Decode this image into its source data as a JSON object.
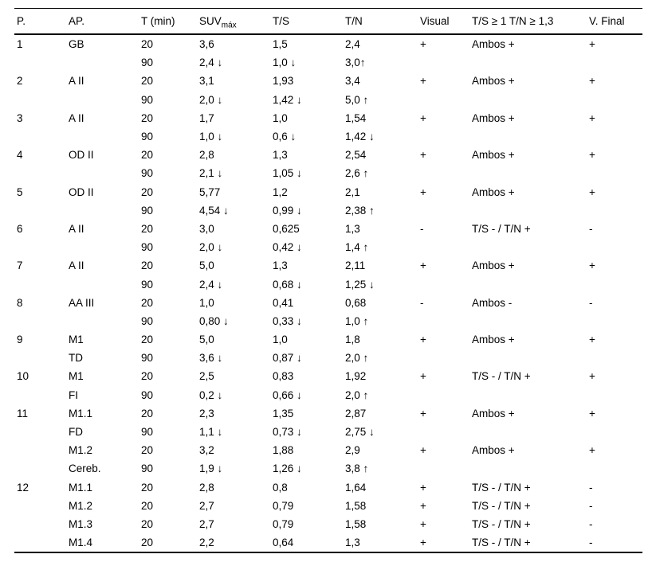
{
  "table": {
    "columns": [
      {
        "label": "P."
      },
      {
        "label": "AP."
      },
      {
        "label": "T (min)"
      },
      {
        "label": "SUV",
        "sub": "máx"
      },
      {
        "label": "T/S"
      },
      {
        "label": "T/N"
      },
      {
        "label": "Visual"
      },
      {
        "label": "T/S ≥ 1 T/N ≥ 1,3"
      },
      {
        "label": "V. Final"
      }
    ],
    "rows": [
      [
        "1",
        "GB",
        "20",
        "3,6",
        "1,5",
        "2,4",
        "+",
        "Ambos +",
        "+"
      ],
      [
        "",
        "",
        "90",
        "2,4 ↓",
        "1,0 ↓",
        "3,0↑",
        "",
        "",
        ""
      ],
      [
        "2",
        "A II",
        "20",
        "3,1",
        "1,93",
        "3,4",
        "+",
        "Ambos +",
        "+"
      ],
      [
        "",
        "",
        "90",
        "2,0 ↓",
        "1,42 ↓",
        "5,0 ↑",
        "",
        "",
        ""
      ],
      [
        "3",
        "A II",
        "20",
        "1,7",
        "1,0",
        "1,54",
        "+",
        "Ambos +",
        "+"
      ],
      [
        "",
        "",
        "90",
        "1,0 ↓",
        "0,6 ↓",
        "1,42 ↓",
        "",
        "",
        ""
      ],
      [
        "4",
        "OD II",
        "20",
        "2,8",
        "1,3",
        "2,54",
        "+",
        "Ambos +",
        "+"
      ],
      [
        "",
        "",
        "90",
        "2,1 ↓",
        "1,05 ↓",
        "2,6 ↑",
        "",
        "",
        ""
      ],
      [
        "5",
        "OD II",
        "20",
        "5,77",
        "1,2",
        "2,1",
        "+",
        "Ambos +",
        "+"
      ],
      [
        "",
        "",
        "90",
        "4,54 ↓",
        "0,99 ↓",
        "2,38 ↑",
        "",
        "",
        ""
      ],
      [
        "6",
        "A II",
        "20",
        "3,0",
        "0,625",
        "1,3",
        "-",
        "T/S - / T/N +",
        "-"
      ],
      [
        "",
        "",
        "90",
        "2,0 ↓",
        "0,42 ↓",
        "1,4 ↑",
        "",
        "",
        ""
      ],
      [
        "7",
        "A II",
        "20",
        "5,0",
        "1,3",
        "2,11",
        "+",
        "Ambos +",
        "+"
      ],
      [
        "",
        "",
        "90",
        "2,4 ↓",
        "0,68 ↓",
        "1,25 ↓",
        "",
        "",
        ""
      ],
      [
        "8",
        "AA III",
        "20",
        "1,0",
        "0,41",
        "0,68",
        "-",
        "Ambos -",
        "-"
      ],
      [
        "",
        "",
        "90",
        "0,80 ↓",
        "0,33 ↓",
        "1,0 ↑",
        "",
        "",
        ""
      ],
      [
        "9",
        "M1",
        "20",
        "5,0",
        "1,0",
        "1,8",
        "+",
        "Ambos +",
        "+"
      ],
      [
        "",
        "TD",
        "90",
        "3,6 ↓",
        "0,87 ↓",
        "2,0 ↑",
        "",
        "",
        ""
      ],
      [
        "10",
        "M1",
        "20",
        "2,5",
        "0,83",
        "1,92",
        "+",
        "T/S - / T/N +",
        "+"
      ],
      [
        "",
        "FI",
        "90",
        "0,2 ↓",
        "0,66 ↓",
        "2,0 ↑",
        "",
        "",
        ""
      ],
      [
        "11",
        "M1.1",
        "20",
        "2,3",
        "1,35",
        "2,87",
        "+",
        "Ambos +",
        "+"
      ],
      [
        "",
        "FD",
        "90",
        "1,1 ↓",
        "0,73 ↓",
        "2,75 ↓",
        "",
        "",
        ""
      ],
      [
        "",
        "M1.2",
        "20",
        "3,2",
        "1,88",
        "2,9",
        "+",
        "Ambos +",
        "+"
      ],
      [
        "",
        "Cereb.",
        "90",
        "1,9 ↓",
        "1,26 ↓",
        "3,8 ↑",
        "",
        "",
        ""
      ],
      [
        "12",
        "M1.1",
        "20",
        "2,8",
        "0,8",
        "1,64",
        "+",
        "T/S - / T/N +",
        "-"
      ],
      [
        "",
        "M1.2",
        "20",
        "2,7",
        "0,79",
        "1,58",
        "+",
        "T/S - / T/N +",
        "-"
      ],
      [
        "",
        "M1.3",
        "20",
        "2,7",
        "0,79",
        "1,58",
        "+",
        "T/S - / T/N +",
        "-"
      ],
      [
        "",
        "M1.4",
        "20",
        "2,2",
        "0,64",
        "1,3",
        "+",
        "T/S - / T/N +",
        "-"
      ]
    ]
  }
}
